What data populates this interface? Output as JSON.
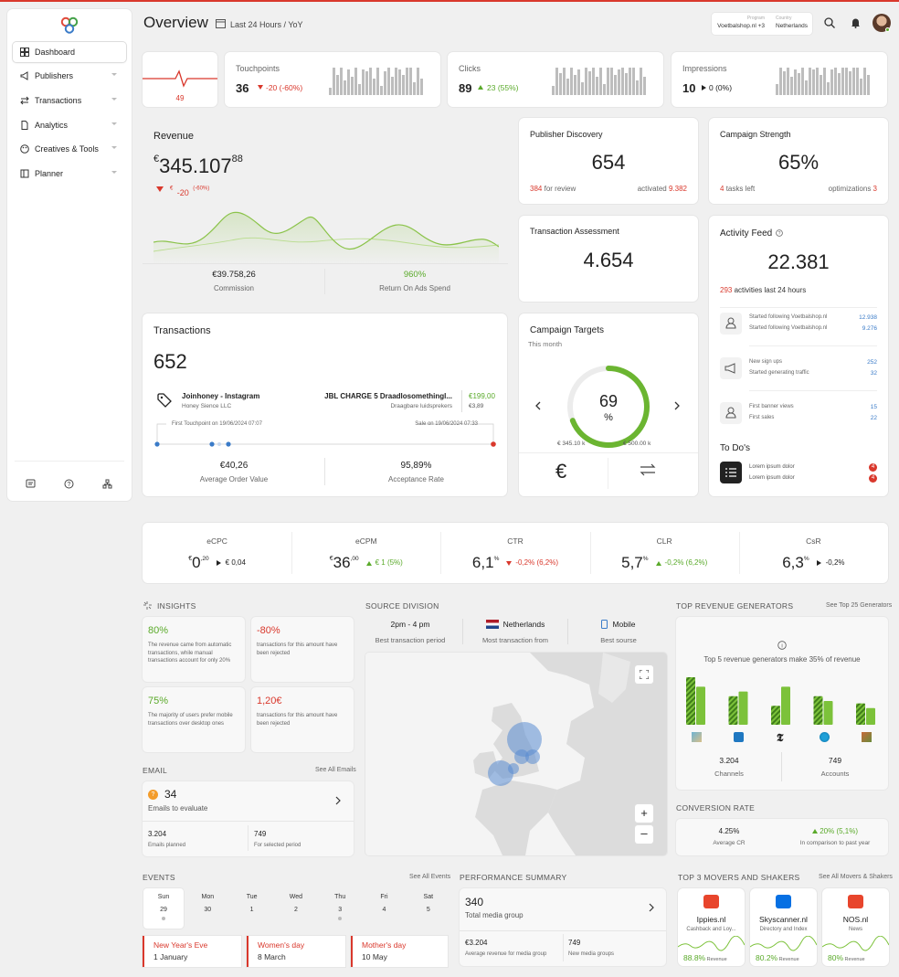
{
  "header": {
    "title": "Overview",
    "period": "Last 24 Hours / YoY",
    "program_label": "Program",
    "program_value": "Voetbalshop.nl +3",
    "country_label": "Country",
    "country_value": "Netherlands"
  },
  "sidebar": {
    "items": [
      {
        "label": "Dashboard"
      },
      {
        "label": "Publishers"
      },
      {
        "label": "Transactions"
      },
      {
        "label": "Analytics"
      },
      {
        "label": "Creatives & Tools"
      },
      {
        "label": "Planner"
      }
    ]
  },
  "kpi_strip": {
    "heartbeat_value": "49",
    "cards": [
      {
        "label": "Touchpoints",
        "value": "36",
        "delta": "-20 (-60%)",
        "bars": [
          8,
          30,
          22,
          30,
          16,
          28,
          20,
          30,
          12,
          28,
          26,
          30,
          18,
          30,
          10,
          26,
          30,
          20,
          30,
          28,
          22,
          30,
          30,
          14,
          30,
          18
        ]
      },
      {
        "label": "Clicks",
        "value": "89",
        "delta": "23 (55%)",
        "bars": [
          10,
          30,
          24,
          30,
          18,
          30,
          22,
          28,
          14,
          30,
          26,
          30,
          20,
          30,
          12,
          30,
          30,
          22,
          28,
          30,
          24,
          30,
          30,
          16,
          30,
          20
        ]
      },
      {
        "label": "Impressions",
        "value": "10",
        "delta": "0 (0%)",
        "bars": [
          12,
          30,
          26,
          30,
          20,
          28,
          24,
          30,
          16,
          30,
          28,
          30,
          22,
          30,
          14,
          28,
          30,
          24,
          30,
          30,
          26,
          30,
          30,
          18,
          30,
          22
        ]
      }
    ]
  },
  "revenue": {
    "title": "Revenue",
    "currency": "€",
    "value": "345.107",
    "decimals": "88",
    "delta_currency": "€",
    "delta": "-20",
    "delta_pct": "(-60%)",
    "commission": "€39.758,26",
    "commission_label": "Commission",
    "roas": "960%",
    "roas_label": "Return On Ads Spend"
  },
  "publisher_discovery": {
    "title": "Publisher Discovery",
    "value": "654",
    "review_count": "384",
    "review_label": "for review",
    "activated_label": "activated",
    "activated_count": "9.382"
  },
  "campaign_strength": {
    "title": "Campaign Strength",
    "value": "65%",
    "tasks_count": "4",
    "tasks_label": "tasks left",
    "opt_label": "optimizations",
    "opt_count": "3"
  },
  "transaction_assessment": {
    "title": "Transaction Assessment",
    "value": "4.654"
  },
  "activity_feed": {
    "title": "Activity Feed",
    "value": "22.381",
    "count": "293",
    "count_label": "activities last 24 hours",
    "groups": [
      {
        "rows": [
          {
            "label": "Started following Voetbalshop.nl",
            "value": "12.938"
          },
          {
            "label": "Started following Voetbalshop.nl",
            "value": "9.276"
          }
        ]
      },
      {
        "rows": [
          {
            "label": "New sign ups",
            "value": "252"
          },
          {
            "label": "Started generating traffic",
            "value": "32"
          }
        ]
      },
      {
        "rows": [
          {
            "label": "First banner views",
            "value": "15"
          },
          {
            "label": "First sales",
            "value": "22"
          }
        ]
      }
    ],
    "todo_title": "To Do's",
    "todos": [
      {
        "label": "Lorem ipsum dolor",
        "badge": "4"
      },
      {
        "label": "Lorem ipsum dolor",
        "badge": "4"
      }
    ]
  },
  "transactions": {
    "title": "Transactions",
    "value": "652",
    "publisher": "Joinhoney - Instagram",
    "publisher_sub": "Honey Sience LLC",
    "product": "JBL CHARGE 5 Draadlosomethingl...",
    "product_sub": "Draagbare luidsprekers",
    "price": "€199,00",
    "commission": "€3,89",
    "first_touch": "First Touchpoint on 19/06/2024 07:07",
    "sale": "Sale on 19/06/2024 07:33",
    "aov": "€40,26",
    "aov_label": "Average Order Value",
    "acceptance": "95,89%",
    "acceptance_label": "Acceptance Rate"
  },
  "campaign_targets": {
    "title": "Campaign Targets",
    "subtitle": "This month",
    "value": "69",
    "unit": "%",
    "progress": 0.69,
    "left_label": "€ 345.10 k",
    "right_label": "€ 500.00 k"
  },
  "metrics": [
    {
      "label": "eCPC",
      "cur": "€",
      "int": "0",
      "dec": ",20",
      "delta": "€ 0,04",
      "dir": "neutral"
    },
    {
      "label": "eCPM",
      "cur": "€",
      "int": "36",
      "dec": ",00",
      "delta": "€ 1 (5%)",
      "dir": "up"
    },
    {
      "label": "CTR",
      "cur": "",
      "int": "6,1",
      "dec": "%",
      "delta": "-0,2% (6,2%)",
      "dir": "down"
    },
    {
      "label": "CLR",
      "cur": "",
      "int": "5,7",
      "dec": "%",
      "delta": "-0,2% (6,2%)",
      "dir": "up"
    },
    {
      "label": "CsR",
      "cur": "",
      "int": "6,3",
      "dec": "%",
      "delta": "-0,2%",
      "dir": "neutral"
    }
  ],
  "insights": {
    "title": "INSIGHTS",
    "items": [
      {
        "value": "80%",
        "text": "The revenue came from automatic transactions, while manual transactions account for only 20%",
        "color": "green"
      },
      {
        "value": "-80%",
        "text": "transactions for this amount have been rejected",
        "color": "red"
      },
      {
        "value": "75%",
        "text": "The majority of users prefer mobile transactions over desktop ones",
        "color": "green"
      },
      {
        "value": "1,20€",
        "text": "transactions for this amount have been rejected",
        "color": "red"
      }
    ]
  },
  "source_division": {
    "title": "SOURCE DIVISION",
    "period_value": "2pm - 4 pm",
    "period_label": "Best transaction period",
    "country_value": "Netherlands",
    "country_label": "Most transaction from",
    "source_value": "Mobile",
    "source_label": "Best sourse"
  },
  "top_revenue": {
    "title": "TOP REVENUE GENERATORS",
    "link": "See Top 25 Generators",
    "info": "Top 5 revenue generators make 35% of revenue",
    "bars": [
      [
        1.0,
        0.8
      ],
      [
        0.6,
        0.7
      ],
      [
        0.4,
        0.8
      ],
      [
        0.6,
        0.5
      ],
      [
        0.45,
        0.35
      ]
    ],
    "channels": "3.204",
    "channels_label": "Channels",
    "accounts": "749",
    "accounts_label": "Accounts"
  },
  "email": {
    "title": "EMAIL",
    "link": "See All Emails",
    "badge": "?",
    "value": "34",
    "label": "Emails to evaluate",
    "planned": "3.204",
    "planned_label": "Emails planned",
    "selected": "749",
    "selected_label": "For selected period"
  },
  "conversion": {
    "title": "CONVERSION RATE",
    "avg": "4.25%",
    "avg_label": "Average CR",
    "delta": "20% (5,1%)",
    "delta_label": "In comparison to past year"
  },
  "events": {
    "title": "EVENTS",
    "link": "See All Events",
    "days": [
      {
        "d": "Sun",
        "n": "29"
      },
      {
        "d": "Mon",
        "n": "30"
      },
      {
        "d": "Tue",
        "n": "1"
      },
      {
        "d": "Wed",
        "n": "2"
      },
      {
        "d": "Thu",
        "n": "3"
      },
      {
        "d": "Fri",
        "n": "4"
      },
      {
        "d": "Sat",
        "n": "5"
      }
    ],
    "items": [
      {
        "title": "New Year's Eve",
        "date": "1 January"
      },
      {
        "title": "Women's day",
        "date": "8 March"
      },
      {
        "title": "Mother's day",
        "date": "10 May"
      }
    ]
  },
  "performance": {
    "title": "PERFORMANCE SUMMARY",
    "value": "340",
    "label": "Total media group",
    "avg": "€3.204",
    "avg_label": "Average revenue for media group",
    "new": "749",
    "new_label": "New media groups"
  },
  "movers": {
    "title": "TOP 3 MOVERS AND SHAKERS",
    "link": "See All Movers & Shakers",
    "items": [
      {
        "name": "Ippies.nl",
        "sub": "Cashback and Loy...",
        "pct": "88.8%",
        "pct_label": "Revenue",
        "logo": "#e8452c"
      },
      {
        "name": "Skyscanner.nl",
        "sub": "Directory and Index",
        "pct": "80.2%",
        "pct_label": "Revenue",
        "logo": "#0770e3"
      },
      {
        "name": "NOS.nl",
        "sub": "News",
        "pct": "80%",
        "pct_label": "Revenue",
        "logo": "#e8452c"
      }
    ]
  }
}
